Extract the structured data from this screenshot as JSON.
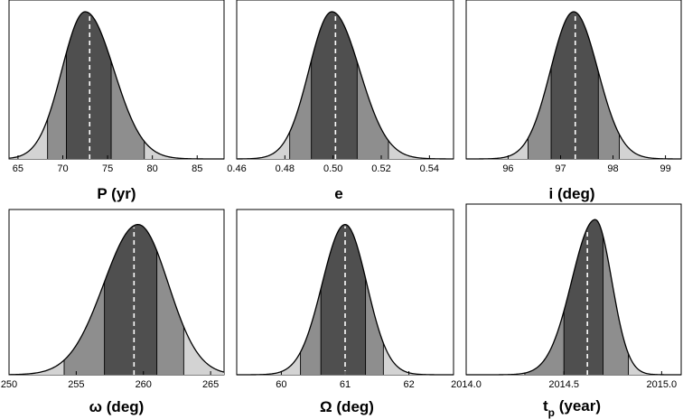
{
  "chart_data": [
    {
      "type": "area",
      "id": "P",
      "xlabel": "P (yr)",
      "xlim": [
        64,
        88
      ],
      "xticks": [
        65,
        70,
        75,
        80,
        85
      ],
      "tick_labels": [
        "65",
        "70",
        "75",
        "80",
        "85"
      ],
      "peak": 72.5,
      "median": 73.0,
      "sigma_left": 2.6,
      "sigma_right": 3.2,
      "band_edges": [
        68.3,
        70.4,
        75.4,
        79.1
      ],
      "ylim": [
        0,
        1.08
      ]
    },
    {
      "type": "area",
      "id": "e",
      "xlabel": "e",
      "xlim": [
        0.46,
        0.55
      ],
      "xticks": [
        0.46,
        0.48,
        0.5,
        0.52,
        0.54
      ],
      "tick_labels": [
        "0.46",
        "0.48",
        "0.50",
        "0.52",
        "0.54"
      ],
      "peak": 0.4995,
      "median": 0.501,
      "sigma_left": 0.0095,
      "sigma_right": 0.0115,
      "band_edges": [
        0.482,
        0.491,
        0.51,
        0.523
      ],
      "ylim": [
        0,
        1.08
      ]
    },
    {
      "type": "area",
      "id": "i",
      "xlabel": "i (deg)",
      "xlim": [
        95.2,
        99.3
      ],
      "xticks": [
        96,
        97,
        98,
        99
      ],
      "tick_labels": [
        "96",
        "97",
        "98",
        "99"
      ],
      "peak": 97.25,
      "median": 97.28,
      "sigma_left": 0.44,
      "sigma_right": 0.46,
      "band_edges": [
        96.38,
        96.82,
        97.72,
        98.12
      ],
      "ylim": [
        0,
        1.08
      ]
    },
    {
      "type": "area",
      "id": "omega",
      "xlabel_symbol": "ω",
      "xlabel_rest": " (deg)",
      "xlim": [
        250,
        266
      ],
      "xticks": [
        250,
        255,
        260,
        265
      ],
      "tick_labels": [
        "250",
        "255",
        "260",
        "265"
      ],
      "peak": 259.6,
      "median": 259.3,
      "sigma_left": 2.55,
      "sigma_right": 2.25,
      "band_edges": [
        254.1,
        257.1,
        261.0,
        263.0
      ],
      "ylim": [
        0,
        1.1
      ]
    },
    {
      "type": "area",
      "id": "Omega",
      "xlabel_symbol": "Ω",
      "xlabel_rest": " (deg)",
      "xlim": [
        59.3,
        62.7
      ],
      "xticks": [
        60,
        61,
        62
      ],
      "tick_labels": [
        "60",
        "61",
        "62"
      ],
      "peak": 61.0,
      "median": 61.0,
      "sigma_left": 0.36,
      "sigma_right": 0.34,
      "band_edges": [
        60.3,
        60.62,
        61.32,
        61.6
      ],
      "ylim": [
        0,
        1.1
      ]
    },
    {
      "type": "area",
      "id": "tp",
      "xlabel_main": "t",
      "xlabel_sub": "p",
      "xlabel_rest": " (year)",
      "xlim": [
        2014.0,
        2015.1
      ],
      "xticks": [
        2014.0,
        2014.5,
        2015.0
      ],
      "tick_labels": [
        "2014.0",
        "2014.5",
        "2015.0"
      ],
      "peak": 2014.66,
      "median": 2014.62,
      "sigma_left": 0.12,
      "sigma_right": 0.085,
      "band_edges": [
        2014.3,
        2014.5,
        2014.7,
        2014.83
      ],
      "ylim": [
        0,
        1.1
      ]
    }
  ],
  "colors": {
    "outer_band": "#d3d3d3",
    "sigma2_band": "#8e8e8e",
    "sigma1_band": "#4f4f4f",
    "median_line": "#ffffff",
    "outline": "#000000"
  }
}
